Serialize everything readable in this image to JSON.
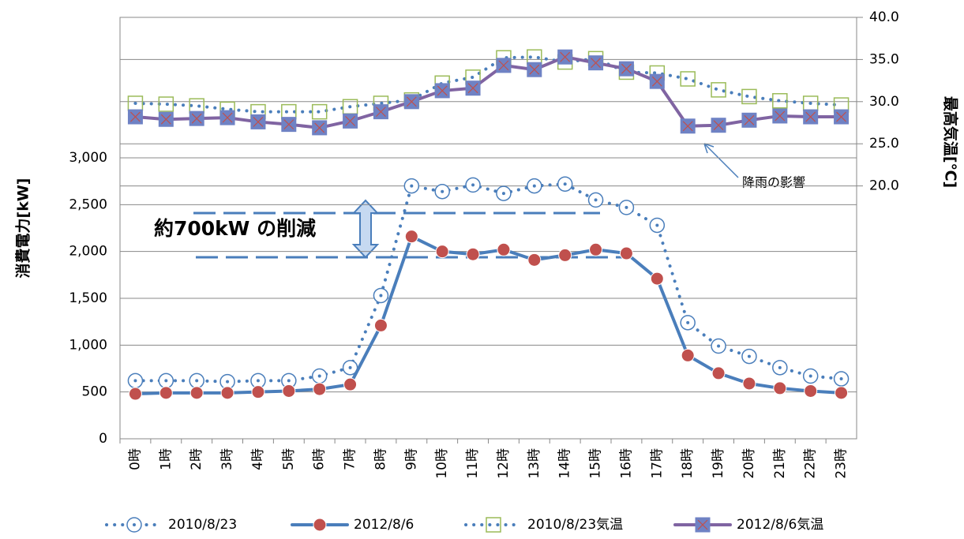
{
  "chart_data": {
    "type": "line",
    "categories": [
      "0時",
      "1時",
      "2時",
      "3時",
      "4時",
      "5時",
      "6時",
      "7時",
      "8時",
      "9時",
      "10時",
      "11時",
      "12時",
      "13時",
      "14時",
      "15時",
      "16時",
      "17時",
      "18時",
      "19時",
      "20時",
      "21時",
      "22時",
      "23時"
    ],
    "y_label": "消費電力[kW]",
    "y2_label": "最高気温[℃]",
    "ylim": [
      0,
      4500
    ],
    "yticks": [
      0,
      500,
      {
        "value": 1000,
        "label": "1,000"
      },
      {
        "value": 1500,
        "label": "1,500"
      },
      {
        "value": 2000,
        "label": "2,000"
      },
      {
        "value": 2500,
        "label": "2,500"
      },
      {
        "value": 3000,
        "label": "3,000"
      }
    ],
    "y2lim": [
      -10,
      40
    ],
    "y2ticks": [
      {
        "value": 20,
        "label": "20.0"
      },
      {
        "value": 25,
        "label": "25.0"
      },
      {
        "value": 30,
        "label": "30.0"
      },
      {
        "value": 35,
        "label": "35.0"
      },
      {
        "value": 40,
        "label": "40.0"
      }
    ],
    "grid": true,
    "legend": "bottom",
    "annotations": [
      "約700kW の削減",
      "降雨の影響"
    ],
    "series": [
      {
        "name": "2010/8/23",
        "color": "#4a7ebb",
        "line": "dotted",
        "marker": "circle-dot",
        "values": [
          620,
          620,
          620,
          610,
          620,
          620,
          670,
          760,
          1530,
          2700,
          2640,
          2710,
          2620,
          2700,
          2720,
          2550,
          2470,
          2280,
          1240,
          990,
          880,
          760,
          670,
          640
        ]
      },
      {
        "name": "2012/8/6",
        "color": "#4a7ebb",
        "marker_color": "#c0504d",
        "line": "solid",
        "marker": "circle",
        "values": [
          480,
          490,
          490,
          490,
          500,
          510,
          530,
          580,
          1210,
          2160,
          2000,
          1970,
          2020,
          1910,
          1960,
          2020,
          1980,
          1710,
          890,
          700,
          590,
          540,
          510,
          490
        ]
      },
      {
        "name": "2010/8/23気温",
        "color": "#4a7ebb",
        "marker_color": "#9bbb59",
        "line": "dotted",
        "marker": "square",
        "axis": "y2",
        "values": [
          29.8,
          29.7,
          29.5,
          29.1,
          28.8,
          28.8,
          28.8,
          29.4,
          29.8,
          30.2,
          32.2,
          32.9,
          35.2,
          35.3,
          34.7,
          35.1,
          33.5,
          33.4,
          32.7,
          31.4,
          30.6,
          30.1,
          29.8,
          29.6
        ]
      },
      {
        "name": "2012/8/6気温",
        "color": "#8064a2",
        "marker_color": "#6f82c4",
        "line": "solid",
        "marker": "square-x",
        "axis": "y2",
        "values": [
          28.2,
          27.9,
          28.0,
          28.1,
          27.6,
          27.3,
          26.9,
          27.7,
          28.8,
          30.0,
          31.3,
          31.6,
          34.3,
          33.8,
          35.3,
          34.6,
          33.9,
          32.4,
          27.1,
          27.2,
          27.8,
          28.3,
          28.2,
          28.2
        ]
      }
    ]
  }
}
